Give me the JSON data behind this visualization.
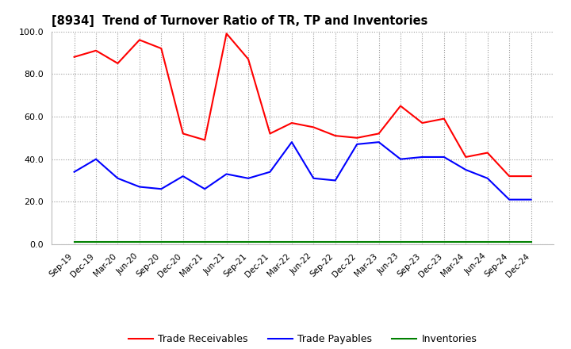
{
  "title": "[8934]  Trend of Turnover Ratio of TR, TP and Inventories",
  "x_labels": [
    "Sep-19",
    "Dec-19",
    "Mar-20",
    "Jun-20",
    "Sep-20",
    "Dec-20",
    "Mar-21",
    "Jun-21",
    "Sep-21",
    "Dec-21",
    "Mar-22",
    "Jun-22",
    "Sep-22",
    "Dec-22",
    "Mar-23",
    "Jun-23",
    "Sep-23",
    "Dec-23",
    "Mar-24",
    "Jun-24",
    "Sep-24",
    "Dec-24"
  ],
  "trade_receivables": [
    88,
    91,
    85,
    96,
    92,
    52,
    49,
    99,
    87,
    52,
    57,
    55,
    51,
    50,
    52,
    65,
    57,
    59,
    41,
    43,
    32,
    32
  ],
  "trade_payables": [
    34,
    40,
    31,
    27,
    26,
    32,
    26,
    33,
    31,
    34,
    48,
    31,
    30,
    47,
    48,
    40,
    41,
    41,
    35,
    31,
    21,
    21
  ],
  "inventories": [
    1,
    1,
    1,
    1,
    1,
    1,
    1,
    1,
    1,
    1,
    1,
    1,
    1,
    1,
    1,
    1,
    1,
    1,
    1,
    1,
    1,
    1
  ],
  "ylim": [
    0,
    100
  ],
  "yticks": [
    0.0,
    20.0,
    40.0,
    60.0,
    80.0,
    100.0
  ],
  "colors": {
    "trade_receivables": "#ff0000",
    "trade_payables": "#0000ff",
    "inventories": "#008000",
    "background": "#ffffff",
    "grid": "#999999",
    "title": "#000000"
  },
  "legend_labels": [
    "Trade Receivables",
    "Trade Payables",
    "Inventories"
  ],
  "figsize": [
    7.2,
    4.4
  ],
  "dpi": 100
}
